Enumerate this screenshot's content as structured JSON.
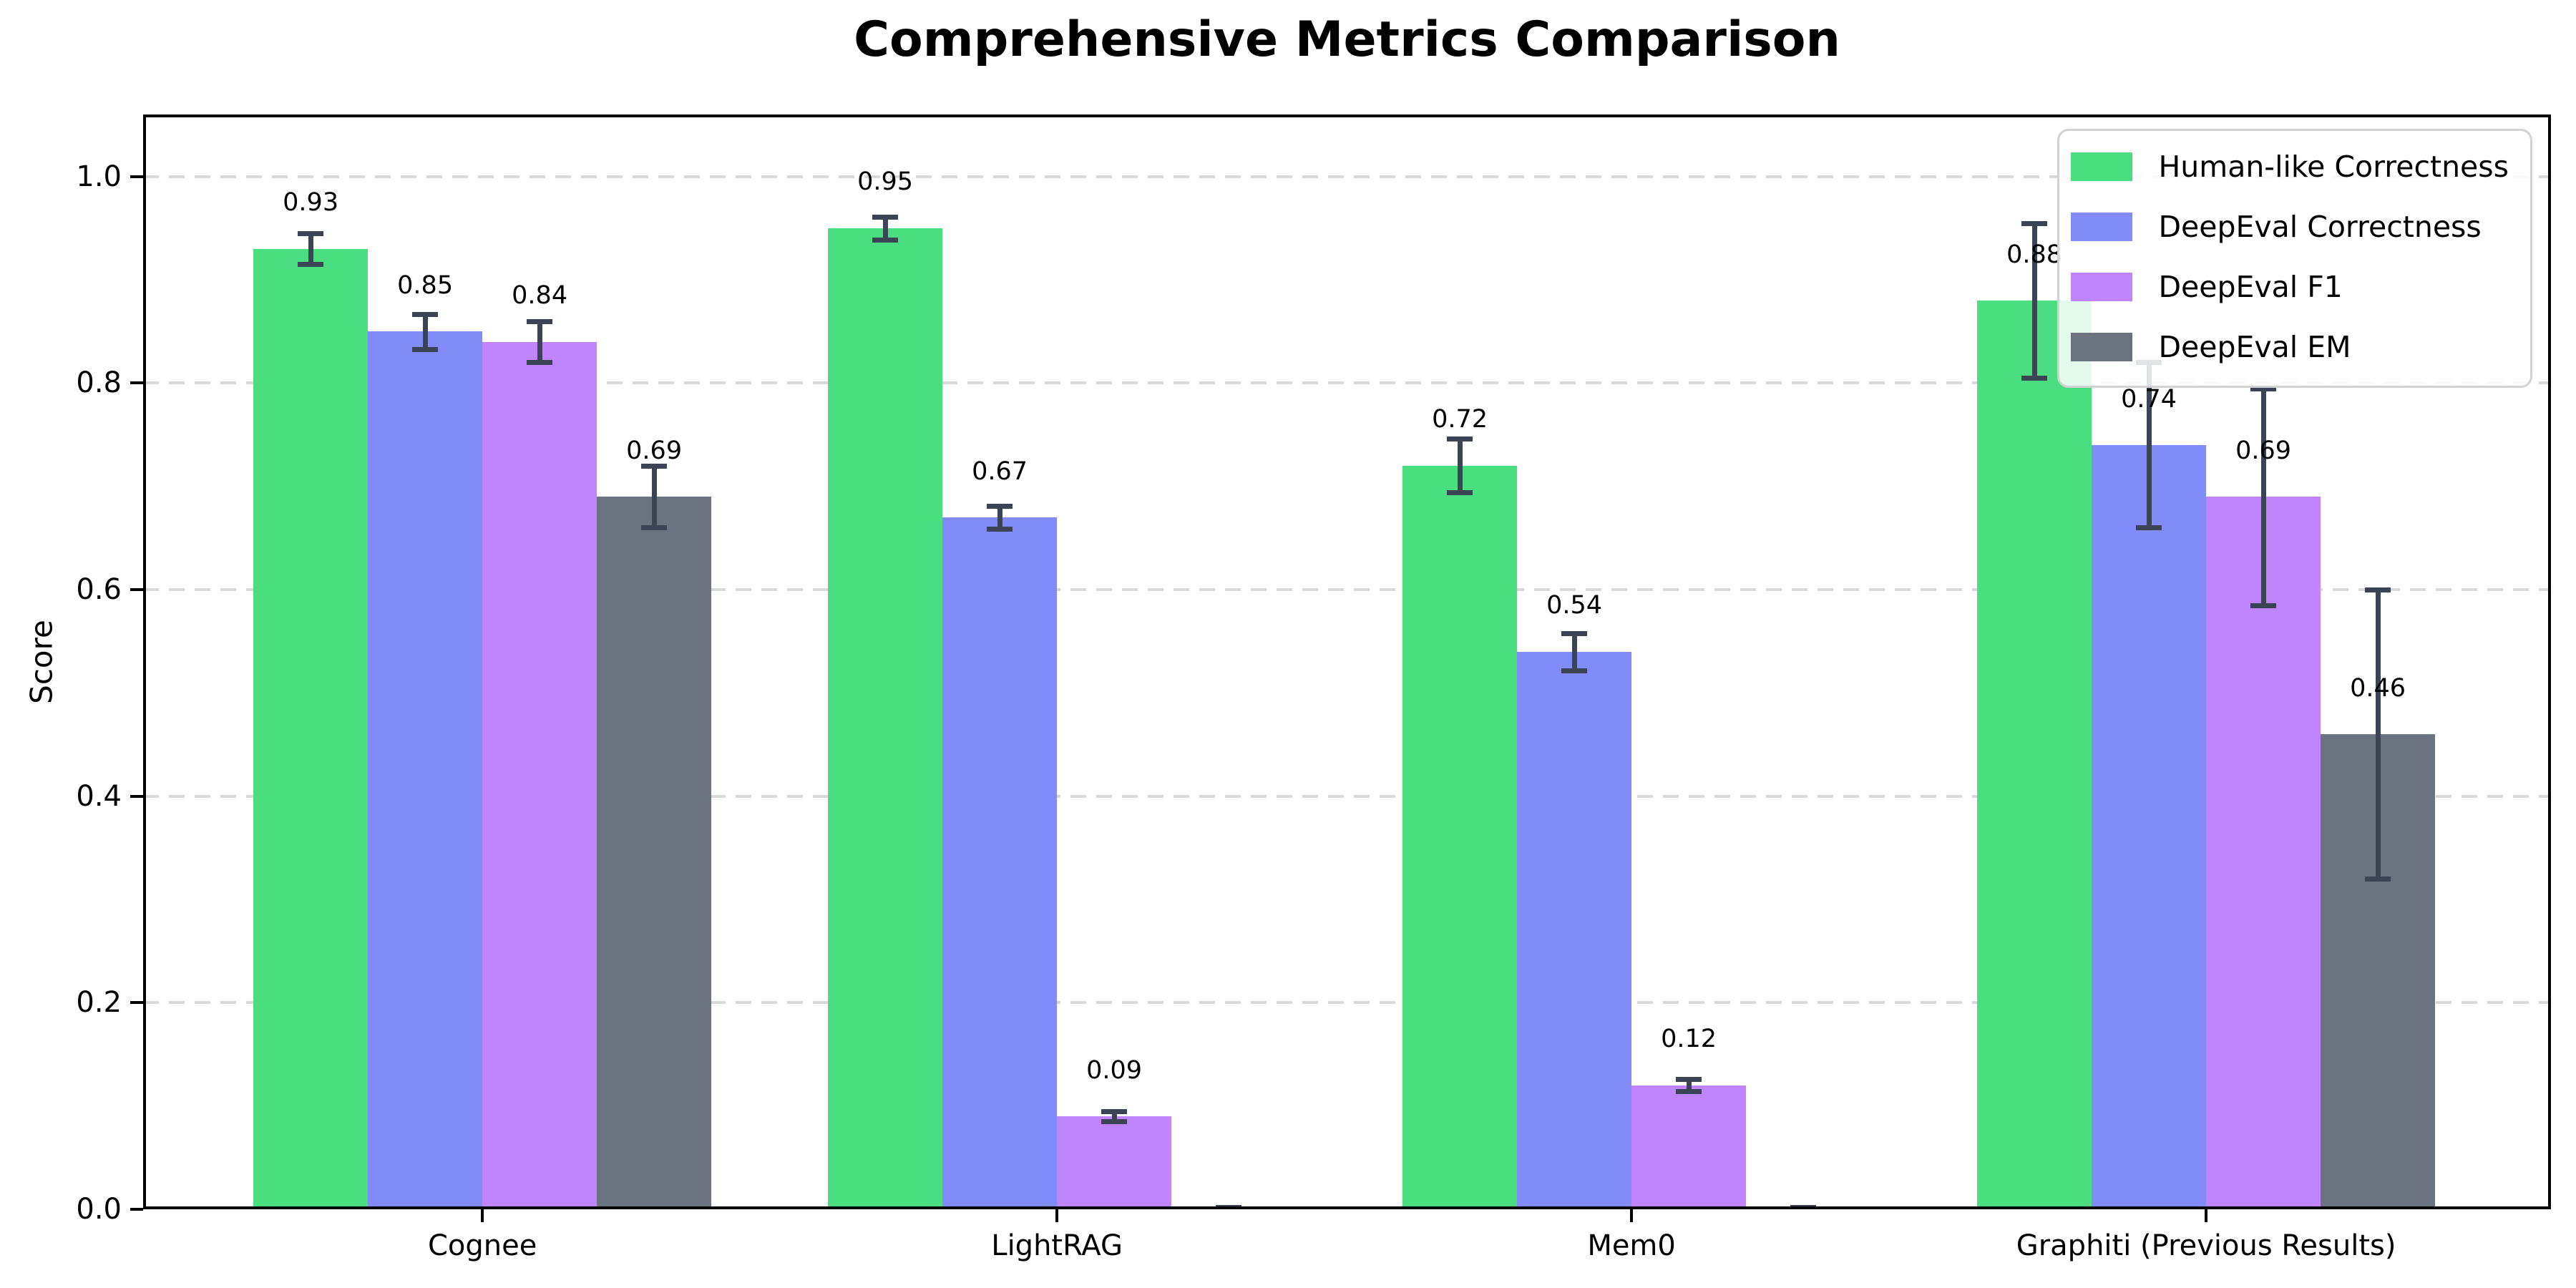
{
  "chart_data": {
    "type": "bar",
    "title": "Comprehensive Metrics Comparison",
    "ylabel": "Score",
    "xlabel": "",
    "categories": [
      "Cognee",
      "LightRAG",
      "Mem0",
      "Graphiti (Previous Results)"
    ],
    "series": [
      {
        "name": "Human-like Correctness",
        "color": "#4ade80",
        "values": [
          0.93,
          0.95,
          0.72,
          0.88
        ],
        "errors": [
          0.015,
          0.011,
          0.026,
          0.075
        ],
        "labels": [
          "0.93",
          "0.95",
          "0.72",
          "0.88"
        ]
      },
      {
        "name": "DeepEval Correctness",
        "color": "#818cf8",
        "values": [
          0.85,
          0.67,
          0.54,
          0.74
        ],
        "errors": [
          0.017,
          0.011,
          0.018,
          0.08
        ],
        "labels": [
          "0.85",
          "0.67",
          "0.54",
          "0.74"
        ]
      },
      {
        "name": "DeepEval F1",
        "color": "#c084fc",
        "values": [
          0.84,
          0.09,
          0.12,
          0.69
        ],
        "errors": [
          0.02,
          0.005,
          0.006,
          0.105
        ],
        "labels": [
          "0.84",
          "0.09",
          "0.12",
          "0.69"
        ]
      },
      {
        "name": "DeepEval EM",
        "color": "#6b7280",
        "values": [
          0.69,
          0.0,
          0.0,
          0.46
        ],
        "errors": [
          0.03,
          0.002,
          0.002,
          0.14
        ],
        "labels": [
          "0.69",
          "",
          "",
          "0.46"
        ]
      }
    ],
    "yticks": [
      "0.0",
      "0.2",
      "0.4",
      "0.6",
      "0.8",
      "1.0"
    ],
    "ylim": [
      0,
      1.06
    ],
    "grid": "horizontal dashed",
    "legend_position": "upper right",
    "grid_color": "#d9d9d9",
    "axis_color": "#000000",
    "error_bar_color": "#3a4454",
    "background_color": "#ffffff"
  }
}
